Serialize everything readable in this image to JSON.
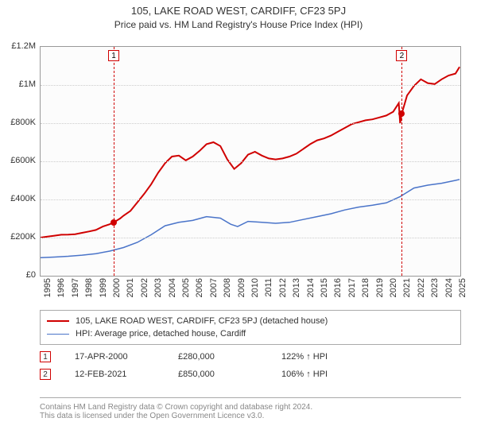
{
  "title": "105, LAKE ROAD WEST, CARDIFF, CF23 5PJ",
  "subtitle": "Price paid vs. HM Land Registry's House Price Index (HPI)",
  "chart": {
    "type": "line",
    "background_color": "#fcfcfc",
    "border_color": "#999999",
    "grid_color": "#cccccc",
    "x": {
      "min_year": 1995,
      "max_year": 2025,
      "ticks": [
        1995,
        1996,
        1997,
        1998,
        1999,
        2000,
        2001,
        2002,
        2003,
        2004,
        2005,
        2006,
        2007,
        2008,
        2009,
        2010,
        2011,
        2012,
        2013,
        2014,
        2015,
        2016,
        2017,
        2018,
        2019,
        2020,
        2021,
        2022,
        2023,
        2024,
        2025
      ],
      "label_fontsize": 11,
      "label_rotation_deg": -90
    },
    "y": {
      "min": 0,
      "max": 1200000,
      "ticks": [
        {
          "v": 0,
          "label": "£0"
        },
        {
          "v": 200000,
          "label": "£200K"
        },
        {
          "v": 400000,
          "label": "£400K"
        },
        {
          "v": 600000,
          "label": "£600K"
        },
        {
          "v": 800000,
          "label": "£800K"
        },
        {
          "v": 1000000,
          "label": "£1M"
        },
        {
          "v": 1200000,
          "label": "£1.2M"
        }
      ],
      "label_fontsize": 11
    },
    "series": [
      {
        "id": "property",
        "label": "105, LAKE ROAD WEST, CARDIFF, CF23 5PJ (detached house)",
        "color": "#d00000",
        "line_width": 2,
        "data": [
          [
            1995.0,
            200000
          ],
          [
            1995.5,
            205000
          ],
          [
            1996.0,
            210000
          ],
          [
            1996.5,
            215000
          ],
          [
            1997.0,
            216000
          ],
          [
            1997.5,
            218000
          ],
          [
            1998.0,
            225000
          ],
          [
            1998.5,
            232000
          ],
          [
            1999.0,
            240000
          ],
          [
            1999.5,
            258000
          ],
          [
            2000.0,
            270000
          ],
          [
            2000.3,
            280000
          ],
          [
            2000.75,
            300000
          ],
          [
            2001.0,
            315000
          ],
          [
            2001.5,
            340000
          ],
          [
            2002.0,
            385000
          ],
          [
            2002.5,
            430000
          ],
          [
            2003.0,
            480000
          ],
          [
            2003.5,
            540000
          ],
          [
            2004.0,
            590000
          ],
          [
            2004.5,
            625000
          ],
          [
            2005.0,
            630000
          ],
          [
            2005.5,
            605000
          ],
          [
            2006.0,
            625000
          ],
          [
            2006.5,
            655000
          ],
          [
            2007.0,
            690000
          ],
          [
            2007.5,
            700000
          ],
          [
            2008.0,
            680000
          ],
          [
            2008.5,
            610000
          ],
          [
            2009.0,
            560000
          ],
          [
            2009.5,
            590000
          ],
          [
            2010.0,
            635000
          ],
          [
            2010.5,
            650000
          ],
          [
            2011.0,
            630000
          ],
          [
            2011.5,
            615000
          ],
          [
            2012.0,
            610000
          ],
          [
            2012.5,
            615000
          ],
          [
            2013.0,
            625000
          ],
          [
            2013.5,
            640000
          ],
          [
            2014.0,
            665000
          ],
          [
            2014.5,
            690000
          ],
          [
            2015.0,
            710000
          ],
          [
            2015.5,
            720000
          ],
          [
            2016.0,
            735000
          ],
          [
            2016.5,
            755000
          ],
          [
            2017.0,
            775000
          ],
          [
            2017.5,
            795000
          ],
          [
            2018.0,
            805000
          ],
          [
            2018.5,
            815000
          ],
          [
            2019.0,
            820000
          ],
          [
            2019.5,
            830000
          ],
          [
            2020.0,
            840000
          ],
          [
            2020.5,
            860000
          ],
          [
            2020.9,
            905000
          ],
          [
            2021.0,
            800000
          ],
          [
            2021.12,
            850000
          ],
          [
            2021.5,
            945000
          ],
          [
            2022.0,
            995000
          ],
          [
            2022.5,
            1030000
          ],
          [
            2023.0,
            1010000
          ],
          [
            2023.5,
            1005000
          ],
          [
            2024.0,
            1030000
          ],
          [
            2024.5,
            1050000
          ],
          [
            2025.0,
            1060000
          ],
          [
            2025.3,
            1095000
          ]
        ]
      },
      {
        "id": "hpi",
        "label": "HPI: Average price, detached house, Cardiff",
        "color": "#4a74c9",
        "line_width": 1.5,
        "data": [
          [
            1995.0,
            95000
          ],
          [
            1996.0,
            98000
          ],
          [
            1997.0,
            102000
          ],
          [
            1998.0,
            108000
          ],
          [
            1999.0,
            116000
          ],
          [
            2000.0,
            129000
          ],
          [
            2001.0,
            148000
          ],
          [
            2002.0,
            175000
          ],
          [
            2003.0,
            215000
          ],
          [
            2004.0,
            262000
          ],
          [
            2005.0,
            280000
          ],
          [
            2006.0,
            290000
          ],
          [
            2007.0,
            310000
          ],
          [
            2008.0,
            302000
          ],
          [
            2008.75,
            270000
          ],
          [
            2009.25,
            258000
          ],
          [
            2010.0,
            285000
          ],
          [
            2011.0,
            280000
          ],
          [
            2012.0,
            275000
          ],
          [
            2013.0,
            280000
          ],
          [
            2014.0,
            295000
          ],
          [
            2015.0,
            310000
          ],
          [
            2016.0,
            325000
          ],
          [
            2017.0,
            345000
          ],
          [
            2018.0,
            360000
          ],
          [
            2019.0,
            370000
          ],
          [
            2020.0,
            382000
          ],
          [
            2021.0,
            415000
          ],
          [
            2022.0,
            460000
          ],
          [
            2023.0,
            475000
          ],
          [
            2024.0,
            485000
          ],
          [
            2025.0,
            500000
          ],
          [
            2025.3,
            505000
          ]
        ]
      }
    ],
    "event_lines": [
      {
        "id": 1,
        "year": 2000.29,
        "color": "#d00000",
        "badge": "1"
      },
      {
        "id": 2,
        "year": 2021.12,
        "color": "#d00000",
        "badge": "2"
      }
    ],
    "sale_points": [
      {
        "year": 2000.29,
        "value": 280000,
        "color": "#d00000"
      },
      {
        "year": 2021.12,
        "value": 850000,
        "color": "#d00000"
      }
    ]
  },
  "legend": {
    "items": [
      {
        "color": "#d00000",
        "width": 2,
        "label": "105, LAKE ROAD WEST, CARDIFF, CF23 5PJ (detached house)"
      },
      {
        "color": "#4a74c9",
        "width": 1.5,
        "label": "HPI: Average price, detached house, Cardiff"
      }
    ]
  },
  "sales": [
    {
      "badge": "1",
      "badge_color": "#d00000",
      "date": "17-APR-2000",
      "price": "£280,000",
      "hpi_pct": "122% ↑ HPI"
    },
    {
      "badge": "2",
      "badge_color": "#d00000",
      "date": "12-FEB-2021",
      "price": "£850,000",
      "hpi_pct": "106% ↑ HPI"
    }
  ],
  "footer": {
    "line1": "Contains HM Land Registry data © Crown copyright and database right 2024.",
    "line2": "This data is licensed under the Open Government Licence v3.0."
  }
}
